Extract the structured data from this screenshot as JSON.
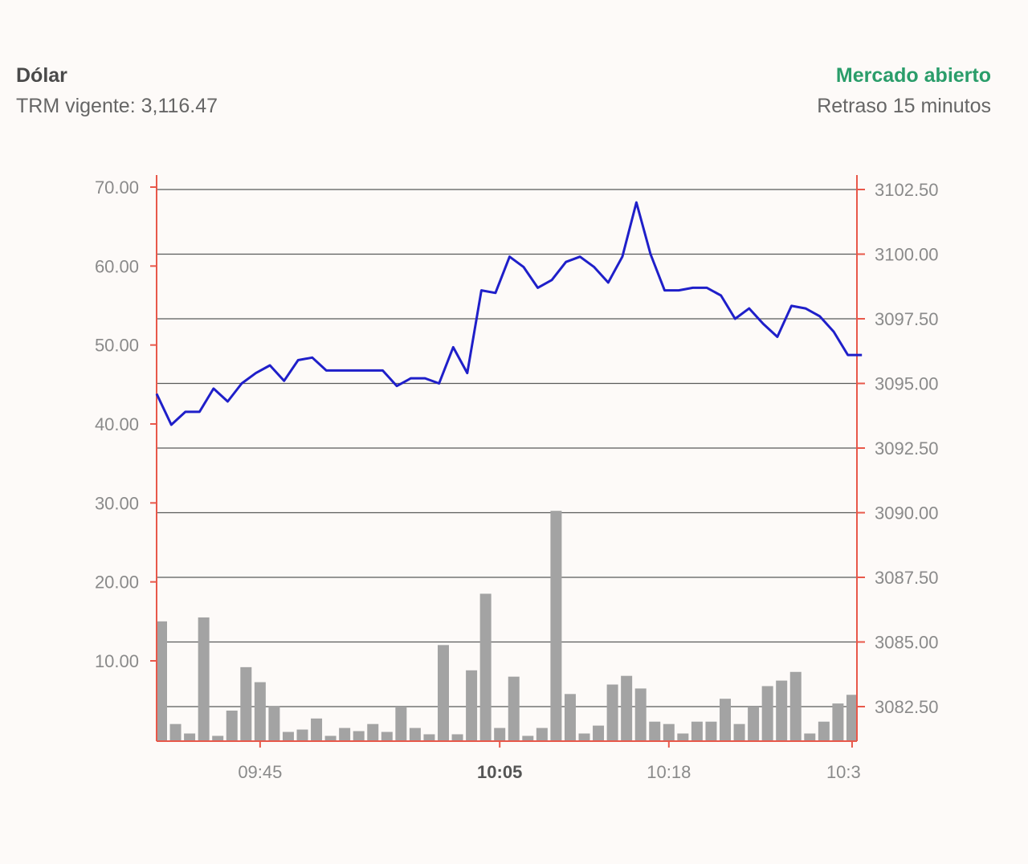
{
  "header": {
    "title": "Dólar",
    "trm_label": "TRM vigente: 3,116.47",
    "market_status": "Mercado abierto",
    "delay_label": "Retraso 15 minutos"
  },
  "colors": {
    "status_green": "#2a9d6a",
    "line": "#1f1fc9",
    "bars": "#a3a3a3",
    "axis": "#e8584a",
    "grid": "#5a5a5a"
  },
  "chart_data": {
    "type": "line+bar",
    "xlabel": "",
    "x_ticks": [
      {
        "label": "09:45",
        "index": 7,
        "bold": false
      },
      {
        "label": "10:05",
        "index": 24,
        "bold": true
      },
      {
        "label": "10:18",
        "index": 36,
        "bold": false
      },
      {
        "label": "10:3",
        "index": 49,
        "bold": false
      }
    ],
    "left_axis": {
      "ticks": [
        "70.00",
        "60.00",
        "50.00",
        "40.00",
        "30.00",
        "20.00",
        "10.00"
      ],
      "ylim": [
        0,
        70
      ]
    },
    "right_axis": {
      "ticks": [
        "3102.50",
        "3100.00",
        "3097.50",
        "3095.00",
        "3092.50",
        "3090.00",
        "3087.50",
        "3085.00",
        "3082.50"
      ],
      "ylim": [
        3081.2,
        3102.5
      ]
    },
    "series": [
      {
        "kind": "line",
        "axis": "right",
        "values": [
          3094.6,
          3093.4,
          3093.9,
          3093.9,
          3094.8,
          3094.3,
          3095.0,
          3095.4,
          3095.7,
          3095.1,
          3095.9,
          3096.0,
          3095.5,
          3095.5,
          3095.5,
          3095.5,
          3095.5,
          3094.9,
          3095.2,
          3095.2,
          3095.0,
          3096.4,
          3095.4,
          3098.6,
          3098.5,
          3099.9,
          3099.5,
          3098.7,
          3099.0,
          3099.7,
          3099.9,
          3099.5,
          3098.9,
          3099.9,
          3102.0,
          3100.0,
          3098.6,
          3098.6,
          3098.7,
          3098.7,
          3098.4,
          3097.5,
          3097.9,
          3097.3,
          3096.8,
          3098.0,
          3097.9,
          3097.6,
          3097.0,
          3096.1,
          3096.1
        ]
      },
      {
        "kind": "bar",
        "axis": "left",
        "values": [
          15,
          2,
          0.8,
          15.5,
          0.5,
          3.7,
          9.2,
          7.3,
          4.3,
          1,
          1.3,
          2.7,
          0.5,
          1.5,
          1.1,
          2,
          1,
          4.2,
          1.5,
          0.7,
          12,
          0.7,
          8.8,
          18.5,
          1.5,
          8,
          0.5,
          1.5,
          29,
          5.8,
          0.8,
          1.8,
          7,
          8.1,
          6.5,
          2.3,
          2,
          0.8,
          2.3,
          2.3,
          5.2,
          2,
          4.2,
          6.8,
          7.5,
          8.6,
          0.8,
          2.3,
          4.6,
          5.7
        ]
      }
    ]
  }
}
